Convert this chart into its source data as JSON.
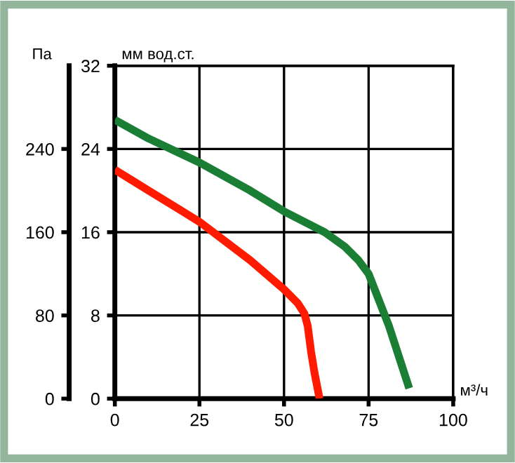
{
  "chart_data": {
    "type": "line",
    "xlabel": "м³/ч",
    "ylabel": "мм вод.ст.",
    "y2label": "Па",
    "xlim": [
      0,
      100
    ],
    "xticks": [
      0,
      25,
      50,
      75,
      100
    ],
    "ylim": [
      0,
      32
    ],
    "yticks": [
      0,
      8,
      16,
      24,
      32
    ],
    "y2lim": [
      0,
      320
    ],
    "y2ticks": [
      0,
      80,
      160,
      240
    ],
    "grid": true,
    "line_style": "solid",
    "series": [
      {
        "color": "#1a7f35",
        "x": [
          0,
          10,
          25,
          40,
          50,
          62,
          68,
          72,
          75,
          78,
          81,
          84,
          87
        ],
        "values": [
          26.8,
          25,
          22.7,
          20,
          18,
          16,
          14.6,
          13.3,
          12,
          9.5,
          7,
          4,
          1
        ]
      },
      {
        "color": "#ff1a00",
        "x": [
          0,
          10,
          25,
          40,
          50,
          54,
          56,
          57,
          58,
          59,
          60.5
        ],
        "values": [
          22,
          20,
          17,
          13.3,
          10.5,
          9.2,
          8.2,
          7,
          4.5,
          2.5,
          0
        ]
      }
    ]
  }
}
